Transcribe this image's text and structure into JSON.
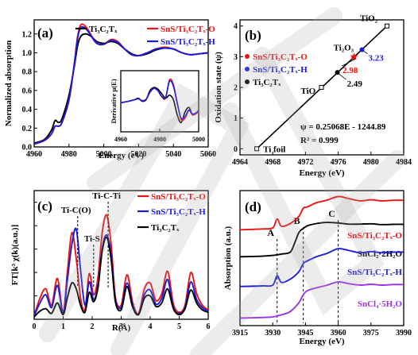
{
  "colors": {
    "black": "#000000",
    "red": "#ee1111",
    "blue": "#1a1adf",
    "violet": "#9933ee",
    "watermark": "#a9a9a9"
  },
  "chart_data": [
    {
      "panel": "(a)",
      "type": "line",
      "xlabel": "Energy (eV)",
      "ylabel": "Normalized absorption",
      "xlim": [
        4960,
        5060
      ],
      "ylim": [
        0,
        1.35
      ],
      "xticks": [
        4960,
        4980,
        5000,
        5020,
        5040,
        5060
      ],
      "yticks": [
        0.0,
        0.2,
        0.4,
        0.6,
        0.8,
        1.0,
        1.2
      ],
      "yticklabels": [
        "0.0",
        "0.2",
        "0.4",
        "0.6",
        "0.8",
        "1.0",
        "1.2"
      ],
      "legend": {
        "placement": "top",
        "entries": [
          {
            "label": "Ti₃C₂Tₓ",
            "color": "black"
          },
          {
            "label": "SnS/Ti₃C₂Tₓ-O",
            "color": "red"
          },
          {
            "label": "SnS/Ti₃C₂Tₓ-H",
            "color": "blue"
          }
        ]
      },
      "series": [
        {
          "color": "black",
          "x": [
            4960,
            4966,
            4970,
            4972,
            4974,
            4976,
            4980,
            4983,
            4985,
            4987,
            4990,
            4993,
            4996,
            5000,
            5004,
            5008,
            5012,
            5016,
            5020,
            5025,
            5030,
            5035,
            5040,
            5045,
            5050,
            5055,
            5060
          ],
          "y": [
            0.04,
            0.08,
            0.18,
            0.28,
            0.26,
            0.3,
            0.55,
            0.85,
            1.08,
            1.18,
            1.2,
            1.17,
            1.12,
            1.1,
            1.12,
            1.1,
            1.04,
            0.99,
            0.97,
            0.99,
            1.03,
            1.05,
            1.04,
            1.0,
            0.98,
            0.99,
            1.0
          ]
        },
        {
          "color": "red",
          "x": [
            4960,
            4966,
            4970,
            4972,
            4974,
            4976,
            4980,
            4983,
            4985,
            4987,
            4990,
            4993,
            4996,
            5000,
            5004,
            5008,
            5012,
            5016,
            5020,
            5025,
            5030,
            5035,
            5040,
            5045,
            5050,
            5055,
            5060
          ],
          "y": [
            0.03,
            0.07,
            0.14,
            0.22,
            0.22,
            0.26,
            0.5,
            0.88,
            1.18,
            1.3,
            1.27,
            1.18,
            1.1,
            1.09,
            1.14,
            1.12,
            1.04,
            0.98,
            0.97,
            1.0,
            1.04,
            1.06,
            1.04,
            1.0,
            0.98,
            0.99,
            1.0
          ]
        },
        {
          "color": "blue",
          "x": [
            4960,
            4966,
            4970,
            4972,
            4974,
            4976,
            4980,
            4983,
            4985,
            4987,
            4990,
            4993,
            4996,
            5000,
            5004,
            5008,
            5012,
            5016,
            5020,
            5025,
            5030,
            5035,
            5040,
            5045,
            5050,
            5055,
            5060
          ],
          "y": [
            0.03,
            0.07,
            0.14,
            0.22,
            0.22,
            0.26,
            0.5,
            0.87,
            1.16,
            1.27,
            1.25,
            1.17,
            1.1,
            1.09,
            1.13,
            1.11,
            1.04,
            0.98,
            0.97,
            1.0,
            1.04,
            1.05,
            1.04,
            1.0,
            0.98,
            0.99,
            1.0
          ]
        }
      ],
      "inset": {
        "ylabel": "Derivative μ(E)",
        "xlim": [
          4960,
          5000
        ],
        "ylim": [
          -1,
          1
        ],
        "xticks": [
          4960,
          4980,
          5000
        ],
        "series": [
          {
            "color": "black",
            "x": [
              4960,
              4964,
              4967,
              4969,
              4971,
              4973,
              4975,
              4977,
              4979,
              4981,
              4983,
              4985,
              4987,
              4989,
              4991,
              4993,
              4995,
              4997,
              5000
            ],
            "y": [
              -0.05,
              0.0,
              0.05,
              0.1,
              0.0,
              0.05,
              0.35,
              0.45,
              0.4,
              0.25,
              0.1,
              0.2,
              0.05,
              -0.45,
              -0.7,
              -0.35,
              -0.2,
              -0.45,
              -0.3
            ]
          },
          {
            "color": "red",
            "x": [
              4960,
              4964,
              4967,
              4969,
              4971,
              4973,
              4975,
              4977,
              4979,
              4981,
              4983,
              4985,
              4987,
              4989,
              4991,
              4993,
              4995,
              4997,
              5000
            ],
            "y": [
              -0.05,
              0.0,
              0.05,
              0.08,
              0.02,
              0.06,
              0.3,
              0.42,
              0.35,
              0.15,
              0.1,
              0.7,
              0.55,
              -0.05,
              -0.6,
              -0.55,
              -0.3,
              -0.45,
              -0.35
            ]
          },
          {
            "color": "blue",
            "x": [
              4960,
              4964,
              4967,
              4969,
              4971,
              4973,
              4975,
              4977,
              4979,
              4981,
              4983,
              4985,
              4987,
              4989,
              4991,
              4993,
              4995,
              4997,
              5000
            ],
            "y": [
              -0.05,
              0.0,
              0.05,
              0.08,
              0.02,
              0.06,
              0.3,
              0.42,
              0.35,
              0.16,
              0.12,
              0.65,
              0.5,
              -0.08,
              -0.55,
              -0.5,
              -0.28,
              -0.42,
              -0.33
            ]
          }
        ]
      }
    },
    {
      "panel": "(b)",
      "type": "scatter",
      "xlabel": "Energy (eV)",
      "ylabel": "Oxidation state (ψ)",
      "xlim": [
        4964,
        4984
      ],
      "ylim": [
        -0.2,
        4.2
      ],
      "xticks": [
        4964,
        4968,
        4972,
        4976,
        4980,
        4984
      ],
      "yticks": [
        0,
        1,
        2,
        3,
        4
      ],
      "fit_line": {
        "x": [
          4966.05,
          4981.96
        ],
        "y": [
          0,
          4
        ]
      },
      "equation": "ψ = 0.25068E - 1244.89",
      "r2": "R² = 0.999",
      "legend": {
        "placement": "top-left",
        "entries": [
          {
            "label": "SnS/Ti₃C₂Tₓ-O",
            "color": "red"
          },
          {
            "label": "SnS/Ti₃C₂Tₓ-H",
            "color": "blue"
          },
          {
            "label": "Ti₃C₂Tₓ",
            "color": "black"
          }
        ]
      },
      "points": [
        {
          "label": "Ti foil",
          "x": 4966.05,
          "y": 0,
          "marker": "open-square"
        },
        {
          "label": "TiO",
          "x": 4973.95,
          "y": 2,
          "marker": "open-square"
        },
        {
          "label": "Ti₂O₃",
          "x": 4977.95,
          "y": 3,
          "marker": "star"
        },
        {
          "label": "TiO₂",
          "x": 4981.96,
          "y": 4,
          "marker": "open-square"
        },
        {
          "label": "2.49",
          "x": 4975.9,
          "y": 2.49,
          "marker": "dot",
          "color": "black"
        },
        {
          "label": "2.98",
          "x": 4977.9,
          "y": 2.98,
          "marker": "dot",
          "color": "red"
        },
        {
          "label": "3.23",
          "x": 4978.9,
          "y": 3.23,
          "marker": "dot",
          "color": "blue"
        }
      ]
    },
    {
      "panel": "(c)",
      "type": "line",
      "xlabel": "R(Å)",
      "ylabel": "FT[k³ χ(k)(a.u.)]",
      "xlim": [
        0,
        6
      ],
      "ylim": [
        0,
        11
      ],
      "xticks": [
        0,
        1,
        2,
        3,
        4,
        5,
        6
      ],
      "yticks": [
        0,
        2,
        4,
        6,
        8,
        10
      ],
      "annotations": [
        {
          "text": "Ti-C(O)",
          "x": 1.5
        },
        {
          "text": "Ti-S",
          "x": 2.05
        },
        {
          "text": "Ti-C-Ti",
          "x": 2.55
        }
      ],
      "legend": {
        "placement": "top-right",
        "entries": [
          {
            "label": "SnS/Ti₃C₂Tₓ-O",
            "color": "red"
          },
          {
            "label": "SnS/Ti₃C₂Tₓ-H",
            "color": "blue"
          },
          {
            "label": "Ti₃C₂Tₓ",
            "color": "black"
          }
        ]
      },
      "series": [
        {
          "color": "red",
          "x": [
            0,
            0.2,
            0.4,
            0.6,
            0.8,
            1.0,
            1.15,
            1.3,
            1.45,
            1.6,
            1.75,
            1.9,
            2.05,
            2.2,
            2.35,
            2.5,
            2.65,
            2.8,
            3.0,
            3.2,
            3.4,
            3.6,
            3.8,
            4.0,
            4.2,
            4.4,
            4.6,
            4.8,
            5.0,
            5.2,
            5.4,
            5.6,
            5.8,
            6.0
          ],
          "y": [
            0.3,
            1.8,
            2.6,
            1.2,
            3.5,
            0.6,
            4.2,
            7.4,
            5.2,
            1.8,
            0.8,
            3.9,
            2.1,
            3.6,
            7.5,
            8.9,
            6.5,
            1.9,
            1.2,
            3.8,
            1.4,
            0.5,
            2.6,
            3.1,
            1.6,
            2.2,
            4.1,
            1.3,
            0.6,
            1.2,
            4.0,
            2.2,
            1.2,
            0.8
          ]
        },
        {
          "color": "blue",
          "x": [
            0,
            0.2,
            0.4,
            0.6,
            0.8,
            1.0,
            1.15,
            1.3,
            1.45,
            1.6,
            1.75,
            1.9,
            2.05,
            2.2,
            2.35,
            2.5,
            2.65,
            2.8,
            3.0,
            3.2,
            3.4,
            3.6,
            3.8,
            4.0,
            4.2,
            4.4,
            4.6,
            4.8,
            5.0,
            5.2,
            5.4,
            5.6,
            5.8,
            6.0
          ],
          "y": [
            0.3,
            1.4,
            2.1,
            1.0,
            2.9,
            0.5,
            3.5,
            6.4,
            7.7,
            4.2,
            1.2,
            3.2,
            1.7,
            2.9,
            6.1,
            7.2,
            5.6,
            1.7,
            1.0,
            3.1,
            1.2,
            0.4,
            2.1,
            2.5,
            1.3,
            1.8,
            3.4,
            1.0,
            0.5,
            1.0,
            3.2,
            1.7,
            1.0,
            0.7
          ]
        },
        {
          "color": "black",
          "x": [
            0,
            0.2,
            0.4,
            0.6,
            0.8,
            1.0,
            1.15,
            1.3,
            1.45,
            1.6,
            1.75,
            1.9,
            2.05,
            2.2,
            2.35,
            2.5,
            2.65,
            2.8,
            3.0,
            3.2,
            3.4,
            3.6,
            3.8,
            4.0,
            4.2,
            4.4,
            4.6,
            4.8,
            5.0,
            5.2,
            5.4,
            5.6,
            5.8,
            6.0
          ],
          "y": [
            0.2,
            0.7,
            0.9,
            0.5,
            1.4,
            0.4,
            1.9,
            3.1,
            2.6,
            1.2,
            0.6,
            2.3,
            1.5,
            2.7,
            5.9,
            7.0,
            5.2,
            1.5,
            0.8,
            2.8,
            1.0,
            0.4,
            1.8,
            2.0,
            1.1,
            1.4,
            2.6,
            0.9,
            0.4,
            0.9,
            2.5,
            1.4,
            0.8,
            0.6
          ]
        }
      ]
    },
    {
      "panel": "(d)",
      "type": "line",
      "xlabel": "Energy (eV)",
      "ylabel": "Absorption (a.u.)",
      "xlim": [
        3915,
        3990
      ],
      "ylim": [
        0,
        5
      ],
      "xticks": [
        3915,
        3930,
        3945,
        3960,
        3975,
        3990
      ],
      "markers": [
        {
          "text": "A",
          "x": 3932
        },
        {
          "text": "B",
          "x": 3944
        },
        {
          "text": "C",
          "x": 3960
        }
      ],
      "series": [
        {
          "label": "SnS/Ti₃C₂Tₓ-O",
          "color": "red",
          "x": [
            3915,
            3925,
            3930,
            3932,
            3934,
            3938,
            3942,
            3944,
            3946,
            3950,
            3955,
            3960,
            3965,
            3970,
            3975,
            3980,
            3985,
            3990
          ],
          "y": [
            3.55,
            3.58,
            3.62,
            3.95,
            3.68,
            3.78,
            4.05,
            4.35,
            4.4,
            4.55,
            4.65,
            4.78,
            4.7,
            4.62,
            4.66,
            4.62,
            4.64,
            4.64
          ]
        },
        {
          "label": "SnCl₂·2H₂O",
          "color": "black",
          "x": [
            3915,
            3925,
            3930,
            3932,
            3934,
            3938,
            3940,
            3942,
            3944,
            3946,
            3950,
            3955,
            3960,
            3965,
            3970,
            3975,
            3980,
            3985,
            3990
          ],
          "y": [
            2.55,
            2.57,
            2.6,
            2.62,
            2.65,
            2.72,
            3.05,
            3.45,
            3.6,
            3.7,
            3.78,
            3.82,
            3.8,
            3.76,
            3.76,
            3.77,
            3.74,
            3.75,
            3.75
          ]
        },
        {
          "label": "SnS/Ti₃C₂Tₓ-H",
          "color": "blue",
          "x": [
            3915,
            3925,
            3930,
            3932,
            3934,
            3938,
            3942,
            3944,
            3946,
            3950,
            3955,
            3960,
            3965,
            3970,
            3975,
            3980,
            3985,
            3990
          ],
          "y": [
            1.45,
            1.47,
            1.5,
            1.85,
            1.6,
            1.72,
            2.0,
            2.3,
            2.4,
            2.55,
            2.68,
            2.85,
            2.78,
            2.7,
            2.74,
            2.7,
            2.72,
            2.72
          ]
        },
        {
          "label": "SnCl₄·5H₂O",
          "color": "violet",
          "x": [
            3915,
            3925,
            3930,
            3932,
            3934,
            3938,
            3942,
            3944,
            3946,
            3950,
            3955,
            3960,
            3965,
            3970,
            3975,
            3980,
            3985,
            3990
          ],
          "y": [
            0.28,
            0.3,
            0.32,
            0.36,
            0.4,
            0.52,
            0.85,
            1.15,
            1.3,
            1.4,
            1.5,
            1.62,
            1.55,
            1.5,
            1.53,
            1.5,
            1.52,
            1.52
          ]
        }
      ]
    }
  ]
}
